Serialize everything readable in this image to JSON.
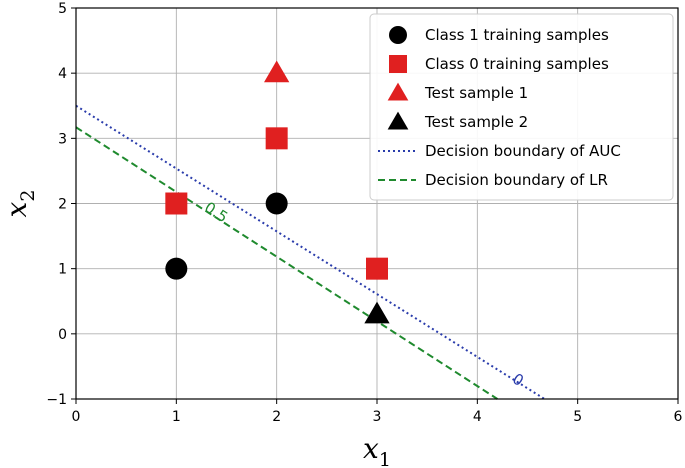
{
  "chart_data": {
    "type": "scatter",
    "xlim": [
      0,
      6
    ],
    "ylim": [
      -1,
      5
    ],
    "xticks": [
      0,
      1,
      2,
      3,
      4,
      5,
      6
    ],
    "yticks": [
      -1,
      0,
      1,
      2,
      3,
      4,
      5
    ],
    "xtick_labels": [
      "0",
      "1",
      "2",
      "3",
      "4",
      "5",
      "6"
    ],
    "ytick_labels": [
      "−1",
      "0",
      "1",
      "2",
      "3",
      "4",
      "5"
    ],
    "xlabel": {
      "base": "x",
      "sub": "1"
    },
    "ylabel": {
      "base": "x",
      "sub": "2"
    },
    "grid": true,
    "legend_position": "top-right",
    "series": [
      {
        "name": "Class 1 training samples",
        "marker": "circle",
        "color": "#000000",
        "points": [
          [
            1,
            1
          ],
          [
            2,
            2
          ]
        ]
      },
      {
        "name": "Class 0 training samples",
        "marker": "square",
        "color": "#e02020",
        "points": [
          [
            1,
            2
          ],
          [
            2,
            3
          ],
          [
            3,
            1
          ]
        ]
      },
      {
        "name": "Test sample 1",
        "marker": "triangle",
        "color": "#e02020",
        "points": [
          [
            2,
            4
          ]
        ]
      },
      {
        "name": "Test sample 2",
        "marker": "triangle",
        "color": "#000000",
        "points": [
          [
            3,
            0.3
          ]
        ]
      }
    ],
    "lines": [
      {
        "name": "Decision boundary of AUC",
        "style": "dotted",
        "color": "#2a3cab",
        "points": [
          [
            0,
            3.5
          ],
          [
            4.67,
            -1
          ]
        ],
        "label": "0",
        "label_at": [
          4.38,
          -0.77
        ]
      },
      {
        "name": "Decision boundary of LR",
        "style": "dashed",
        "color": "#1f8a2e",
        "points": [
          [
            0,
            3.17
          ],
          [
            4.2,
            -1
          ]
        ],
        "label": "0.5",
        "label_at": [
          1.37,
          1.8
        ]
      }
    ]
  }
}
